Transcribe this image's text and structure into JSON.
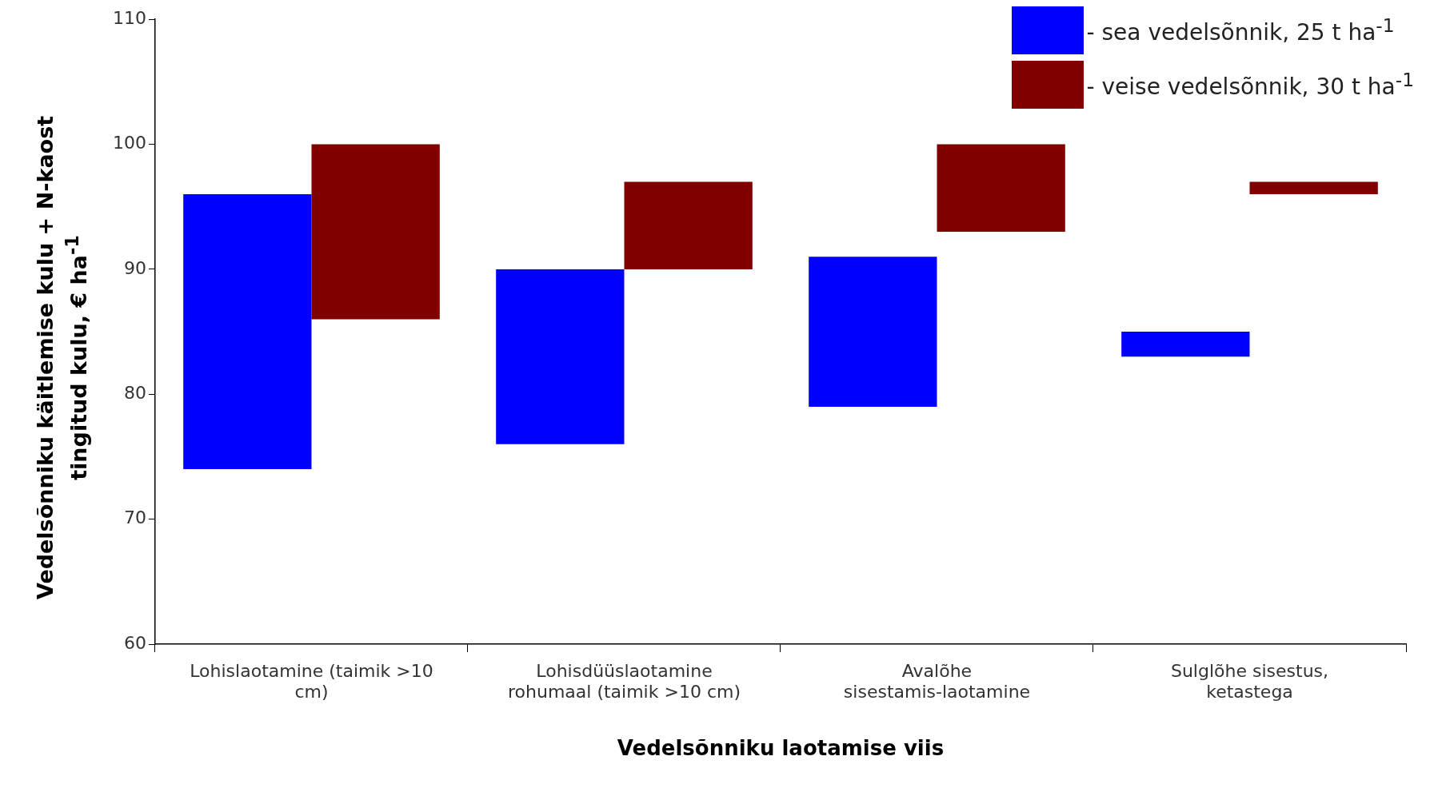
{
  "chart_data": {
    "type": "bar",
    "xlabel": "Vedelsõnniku laotamise viis",
    "ylabel": "Vedelsõnniku käitlemise kulu + N-kaost tingitud kulu, € ha$^{-1}$",
    "categories": [
      "Lohislaotamine (taimik >10 cm)",
      "Lohisdüüslaotamine rohumaal (taimik >10 cm)",
      "Avalõhe sisestamis-laotamine",
      "Sulglõhe sisestus, ketastega"
    ],
    "series": [
      {
        "name": "- sea vedelsõnnik, 25 t ha$^{-1}$",
        "color": "#0000ff",
        "values": [
          22,
          14,
          12,
          2
        ],
        "base": [
          74,
          76,
          79,
          83
        ]
      },
      {
        "name": "- veise vedelsõnnik, 30 t ha$^{-1}$",
        "color": "#800000",
        "values": [
          14,
          7,
          7,
          1
        ],
        "base": [
          86,
          90,
          93,
          96
        ]
      }
    ],
    "ylim": [
      60,
      110
    ],
    "yticks": [
      60,
      70,
      80,
      90,
      100,
      110
    ],
    "grid": false,
    "legend": "top right"
  }
}
